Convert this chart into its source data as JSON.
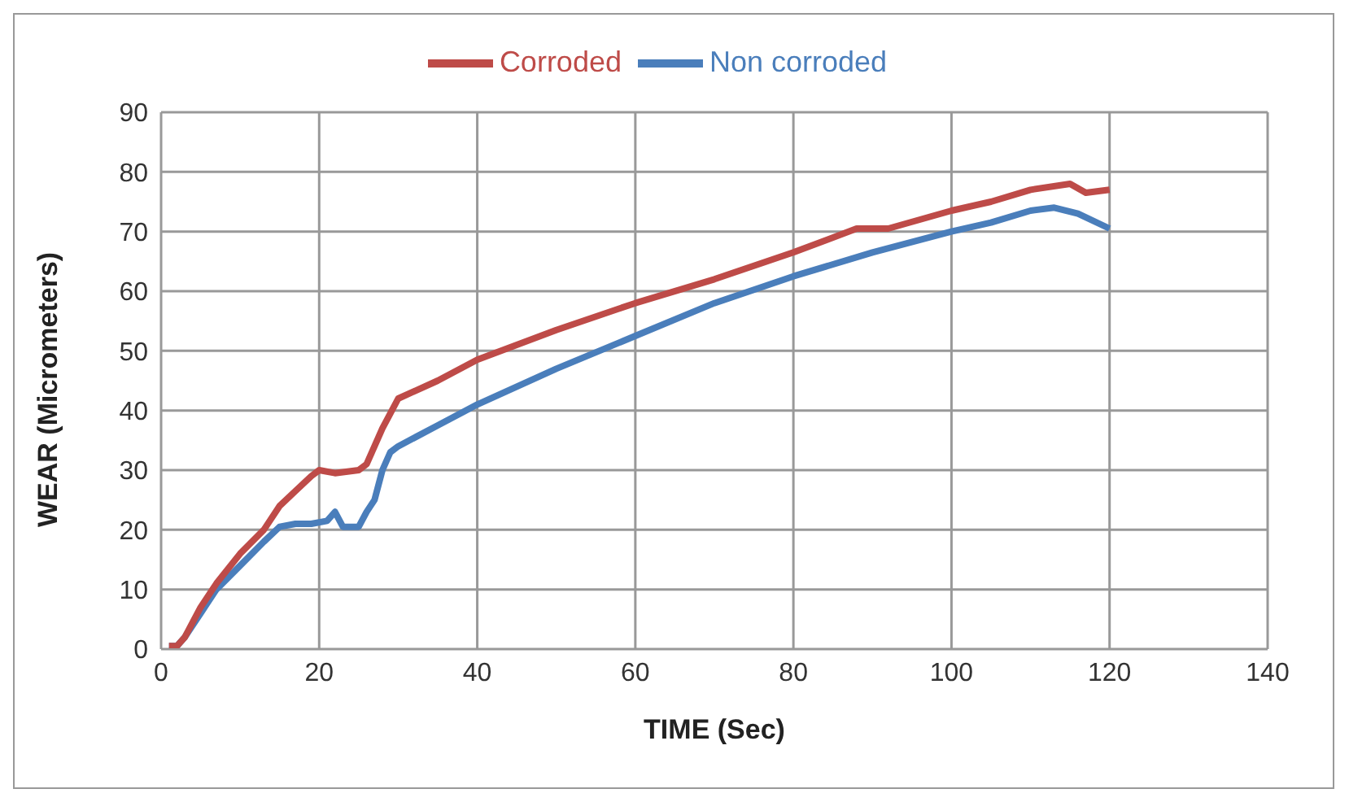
{
  "chart_data": {
    "type": "line",
    "xlabel": "TIME (Sec)",
    "ylabel": "WEAR (Micrometers)",
    "xlim": [
      0,
      140
    ],
    "xticks": [
      0,
      20,
      40,
      60,
      80,
      100,
      120,
      140
    ],
    "ylim": [
      0,
      90
    ],
    "yticks": [
      0,
      10,
      20,
      30,
      40,
      50,
      60,
      70,
      80,
      90
    ],
    "grid": true,
    "legend": "top",
    "marker": "none",
    "line_style": "solid",
    "series": [
      {
        "name": "Non corroded",
        "color": "#4a7ebb",
        "x": [
          1,
          2,
          3,
          5,
          7,
          10,
          13,
          15,
          17,
          19,
          21,
          22,
          23,
          25,
          26,
          27,
          28,
          29,
          30,
          35,
          40,
          50,
          60,
          70,
          80,
          90,
          100,
          105,
          110,
          113,
          116,
          120
        ],
        "values": [
          0.5,
          0.5,
          2,
          6,
          10,
          14,
          18,
          20.5,
          21,
          21,
          21.5,
          23,
          20.5,
          20.5,
          23,
          25,
          30,
          33,
          34,
          37.5,
          41,
          47,
          52.5,
          58,
          62.5,
          66.5,
          70,
          71.5,
          73.5,
          74,
          73,
          70.5
        ]
      },
      {
        "name": "Corroded",
        "color": "#be4b48",
        "x": [
          1,
          2,
          3,
          5,
          7,
          10,
          13,
          15,
          17,
          19,
          20,
          22,
          25,
          26,
          28,
          30,
          35,
          40,
          50,
          60,
          70,
          80,
          88,
          92,
          100,
          105,
          110,
          115,
          117,
          120
        ],
        "values": [
          0.5,
          0.5,
          2,
          7,
          11,
          16,
          20,
          24,
          26.5,
          29,
          30,
          29.5,
          30,
          31,
          37,
          42,
          45,
          48.5,
          53.5,
          58,
          62,
          66.5,
          70.5,
          70.5,
          73.5,
          75,
          77,
          78,
          76.5,
          77
        ]
      }
    ]
  }
}
